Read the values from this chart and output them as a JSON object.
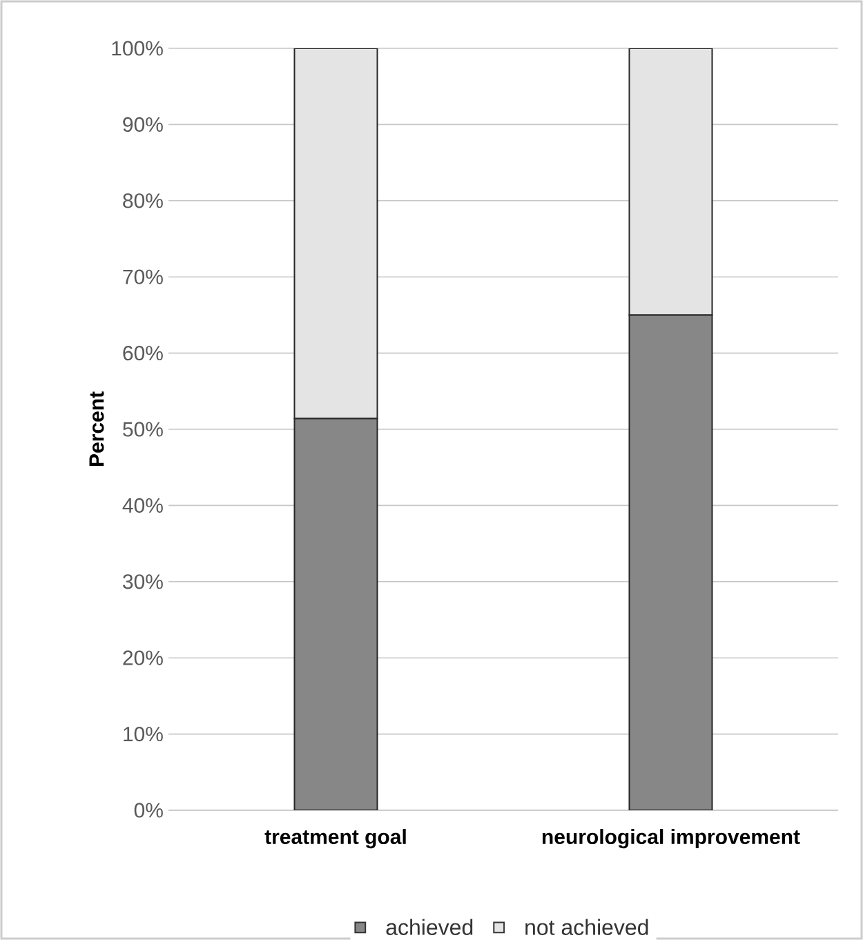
{
  "chart_data": {
    "type": "bar",
    "stacked": true,
    "ylabel": "Percent",
    "categories": [
      "treatment goal",
      "neurological improvement"
    ],
    "series": [
      {
        "name": "achieved",
        "color": "#878787",
        "values": [
          51.4,
          65
        ]
      },
      {
        "name": "not achieved",
        "color": "#e4e4e4",
        "values": [
          48.6,
          35
        ]
      }
    ],
    "ylim": [
      0,
      100
    ],
    "yticks": [
      {
        "value": 0,
        "label": "0%"
      },
      {
        "value": 10,
        "label": "10%"
      },
      {
        "value": 20,
        "label": "20%"
      },
      {
        "value": 30,
        "label": "30%"
      },
      {
        "value": 40,
        "label": "40%"
      },
      {
        "value": 50,
        "label": "50%"
      },
      {
        "value": 60,
        "label": "60%"
      },
      {
        "value": 70,
        "label": "70%"
      },
      {
        "value": 80,
        "label": "80%"
      },
      {
        "value": 90,
        "label": "90%"
      },
      {
        "value": 100,
        "label": "100%"
      }
    ],
    "grid": "y",
    "legend": "bottom"
  }
}
